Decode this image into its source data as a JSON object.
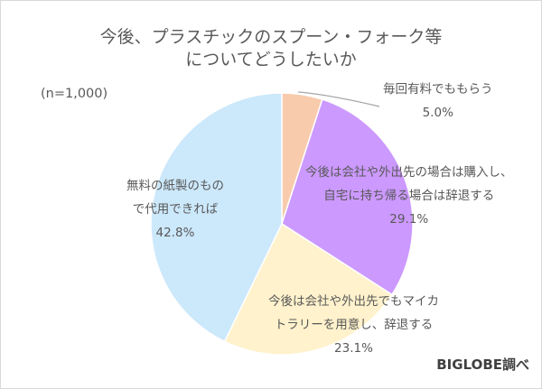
{
  "title_line1": "今後、プラスチックのスプーン・フォーク等",
  "title_line2": "についてどうしたいか",
  "sample_size": "(n=1,000)",
  "source": "BIGLOBE調べ",
  "labels": [
    {
      "line1": "毎回有料でももらう",
      "line2": "",
      "pct": "5.0%"
    },
    {
      "line1": "今後は会社や外出先の場合は購入し、",
      "line2": "自宅に持ち帰る場合は辞退する",
      "pct": "29.1%"
    },
    {
      "line1": "今後は会社や外出先でもマイカ",
      "line2": "トラリーを用意し、辞退する",
      "pct": "23.1%"
    },
    {
      "line1": "無料の紙製のもの",
      "line2": "で代用できれば",
      "pct": "42.8%"
    }
  ],
  "colors": [
    "#f8cbad",
    "#cc99ff",
    "#fff2cc",
    "#cce8fb"
  ],
  "chart_data": {
    "type": "pie",
    "title": "今後、プラスチックのスプーン・フォーク等についてどうしたいか",
    "subtitle": "(n=1,000)",
    "categories": [
      "毎回有料でももらう",
      "今後は会社や外出先の場合は購入し、自宅に持ち帰る場合は辞退する",
      "今後は会社や外出先でもマイカトラリーを用意し、辞退する",
      "無料の紙製のもので代用できれば"
    ],
    "values": [
      5.0,
      29.1,
      23.1,
      42.8
    ],
    "unit": "%",
    "start_angle": "12 o'clock, clockwise",
    "legend": "none (data labels)",
    "annotations": [
      "BIGLOBE調べ"
    ]
  }
}
